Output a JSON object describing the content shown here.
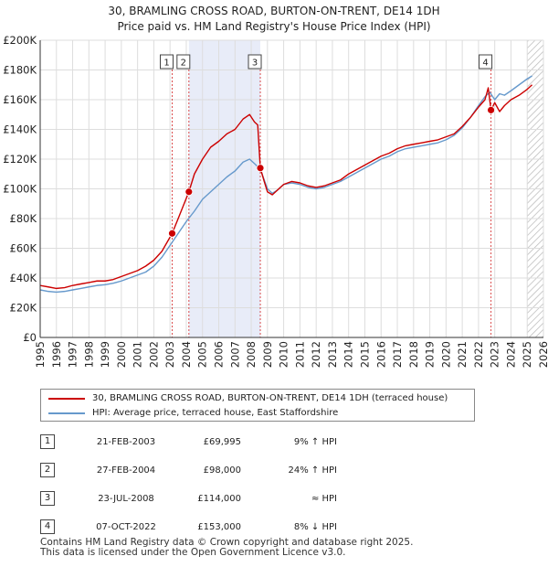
{
  "title": {
    "line1": "30, BRAMLING CROSS ROAD, BURTON-ON-TRENT, DE14 1DH",
    "line2": "Price paid vs. HM Land Registry's House Price Index (HPI)"
  },
  "colors": {
    "price_line": "#cc0000",
    "hpi_line": "#6699cc",
    "shade": "#e8ecf8",
    "marker_vline": "#cc0000",
    "hatch": "#cccccc",
    "grid": "#dddddd"
  },
  "chart_data": {
    "type": "line",
    "title": "30, BRAMLING CROSS ROAD, BURTON-ON-TRENT, DE14 1DH — Price paid vs. HM Land Registry's House Price Index (HPI)",
    "xlabel": "",
    "ylabel": "",
    "xlim": [
      1995,
      2026
    ],
    "ylim": [
      0,
      200000
    ],
    "grid": true,
    "legend_position": "bottom",
    "x_ticks": [
      "1995",
      "1996",
      "1997",
      "1998",
      "1999",
      "2000",
      "2001",
      "2002",
      "2003",
      "2004",
      "2005",
      "2006",
      "2007",
      "2008",
      "2009",
      "2010",
      "2011",
      "2012",
      "2013",
      "2014",
      "2015",
      "2016",
      "2017",
      "2018",
      "2019",
      "2020",
      "2021",
      "2022",
      "2023",
      "2024",
      "2025",
      "2026"
    ],
    "y_ticks": [
      {
        "value": 0,
        "label": "£0"
      },
      {
        "value": 20000,
        "label": "£20K"
      },
      {
        "value": 40000,
        "label": "£40K"
      },
      {
        "value": 60000,
        "label": "£60K"
      },
      {
        "value": 80000,
        "label": "£80K"
      },
      {
        "value": 100000,
        "label": "£100K"
      },
      {
        "value": 120000,
        "label": "£120K"
      },
      {
        "value": 140000,
        "label": "£140K"
      },
      {
        "value": 160000,
        "label": "£160K"
      },
      {
        "value": 180000,
        "label": "£180K"
      },
      {
        "value": 200000,
        "label": "£200K"
      }
    ],
    "series": [
      {
        "name": "30, BRAMLING CROSS ROAD, BURTON-ON-TRENT, DE14 1DH (terraced house)",
        "color": "#cc0000",
        "x": [
          1995.0,
          1995.5,
          1996.0,
          1996.5,
          1997.0,
          1997.5,
          1998.0,
          1998.5,
          1999.0,
          1999.5,
          2000.0,
          2000.5,
          2001.0,
          2001.5,
          2002.0,
          2002.5,
          2003.13,
          2003.5,
          2004.16,
          2004.5,
          2005.0,
          2005.5,
          2006.0,
          2006.5,
          2007.0,
          2007.5,
          2007.9,
          2008.2,
          2008.4,
          2008.56,
          2008.8,
          2009.0,
          2009.3,
          2009.6,
          2010.0,
          2010.5,
          2011.0,
          2011.5,
          2012.0,
          2012.5,
          2013.0,
          2013.5,
          2014.0,
          2014.5,
          2015.0,
          2015.5,
          2016.0,
          2016.5,
          2017.0,
          2017.5,
          2018.0,
          2018.5,
          2019.0,
          2019.5,
          2020.0,
          2020.5,
          2021.0,
          2021.5,
          2022.0,
          2022.4,
          2022.6,
          2022.77,
          2023.0,
          2023.3,
          2023.6,
          2024.0,
          2024.5,
          2025.0,
          2025.3
        ],
        "values": [
          35000,
          34000,
          33000,
          33500,
          35000,
          36000,
          37000,
          38000,
          38000,
          39000,
          41000,
          43000,
          45000,
          48000,
          52000,
          58000,
          69995,
          80000,
          98000,
          110000,
          120000,
          128000,
          132000,
          137000,
          140000,
          147000,
          150000,
          145000,
          143000,
          114000,
          105000,
          98000,
          96000,
          99000,
          103000,
          105000,
          104000,
          102000,
          101000,
          102000,
          104000,
          106000,
          110000,
          113000,
          116000,
          119000,
          122000,
          124000,
          127000,
          129000,
          130000,
          131000,
          132000,
          133000,
          135000,
          137000,
          142000,
          148000,
          155000,
          160000,
          168000,
          153000,
          158000,
          152000,
          156000,
          160000,
          163000,
          167000,
          170000
        ]
      },
      {
        "name": "HPI: Average price, terraced house, East Staffordshire",
        "color": "#6699cc",
        "x": [
          1995.0,
          1995.5,
          1996.0,
          1996.5,
          1997.0,
          1997.5,
          1998.0,
          1998.5,
          1999.0,
          1999.5,
          2000.0,
          2000.5,
          2001.0,
          2001.5,
          2002.0,
          2002.5,
          2003.0,
          2003.5,
          2004.0,
          2004.5,
          2005.0,
          2005.5,
          2006.0,
          2006.5,
          2007.0,
          2007.5,
          2007.9,
          2008.3,
          2008.6,
          2009.0,
          2009.3,
          2009.6,
          2010.0,
          2010.5,
          2011.0,
          2011.5,
          2012.0,
          2012.5,
          2013.0,
          2013.5,
          2014.0,
          2014.5,
          2015.0,
          2015.5,
          2016.0,
          2016.5,
          2017.0,
          2017.5,
          2018.0,
          2018.5,
          2019.0,
          2019.5,
          2020.0,
          2020.5,
          2021.0,
          2021.5,
          2022.0,
          2022.4,
          2022.7,
          2023.0,
          2023.3,
          2023.6,
          2024.0,
          2024.5,
          2025.0,
          2025.3
        ],
        "values": [
          32000,
          31000,
          30500,
          31000,
          32000,
          33000,
          34000,
          35000,
          35500,
          36500,
          38000,
          40000,
          42000,
          44000,
          48000,
          54000,
          62000,
          70000,
          78000,
          85000,
          93000,
          98000,
          103000,
          108000,
          112000,
          118000,
          120000,
          116000,
          112000,
          100000,
          97000,
          99000,
          103000,
          104000,
          103000,
          101000,
          100000,
          101000,
          103000,
          105000,
          108000,
          111000,
          114000,
          117000,
          120000,
          122000,
          125000,
          127000,
          128000,
          129000,
          130000,
          131000,
          133000,
          136000,
          141000,
          148000,
          156000,
          162000,
          165000,
          160000,
          164000,
          163000,
          166000,
          170000,
          174000,
          176000
        ]
      }
    ],
    "shaded_period": [
      2004.16,
      2008.56
    ],
    "hatched_from": 2025.0,
    "markers": [
      {
        "label": "1",
        "x": 2003.13,
        "value": 69995
      },
      {
        "label": "2",
        "x": 2004.16,
        "value": 98000
      },
      {
        "label": "3",
        "x": 2008.56,
        "value": 114000
      },
      {
        "label": "4",
        "x": 2022.77,
        "value": 153000
      }
    ]
  },
  "legend": {
    "price_label": "30, BRAMLING CROSS ROAD, BURTON-ON-TRENT, DE14 1DH (terraced house)",
    "hpi_label": "HPI: Average price, terraced house, East Staffordshire"
  },
  "sales": [
    {
      "num": "1",
      "date": "21-FEB-2003",
      "price": "£69,995",
      "hpi": "9% ↑ HPI"
    },
    {
      "num": "2",
      "date": "27-FEB-2004",
      "price": "£98,000",
      "hpi": "24% ↑ HPI"
    },
    {
      "num": "3",
      "date": "23-JUL-2008",
      "price": "£114,000",
      "hpi": "≈ HPI"
    },
    {
      "num": "4",
      "date": "07-OCT-2022",
      "price": "£153,000",
      "hpi": "8% ↓ HPI"
    }
  ],
  "footer": {
    "line1": "Contains HM Land Registry data © Crown copyright and database right 2025.",
    "line2": "This data is licensed under the Open Government Licence v3.0."
  }
}
